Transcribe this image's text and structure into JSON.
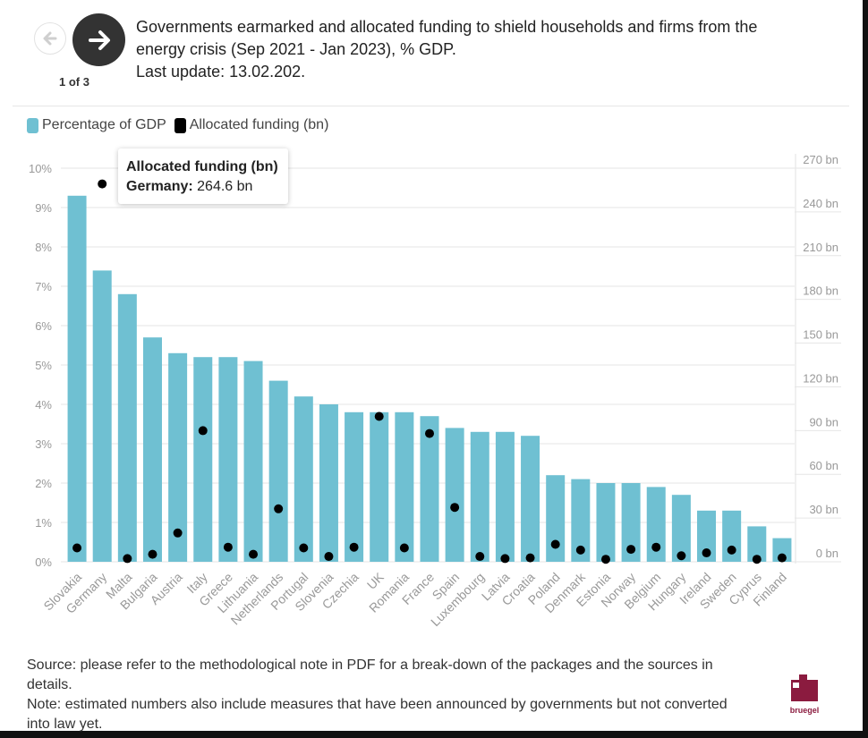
{
  "navigation": {
    "prev_icon": "arrow-left-icon",
    "next_icon": "arrow-right-icon",
    "page_indicator": "1 of 3"
  },
  "header": {
    "title_line1": "Governments earmarked and allocated funding to shield households and firms from the",
    "title_line2": "energy crisis (Sep 2021 - Jan 2023), % GDP.",
    "title_line3": "Last update: 13.02.202."
  },
  "legend": {
    "items": [
      {
        "label": "Percentage of GDP",
        "color": "#6fc0d2"
      },
      {
        "label": "Allocated funding (bn)",
        "color": "#000000"
      }
    ]
  },
  "tooltip": {
    "title": "Allocated funding (bn)",
    "country_label": "Germany:",
    "value_text": "264.6 bn"
  },
  "colors": {
    "bar": "#6fc0d2",
    "dot": "#000000",
    "grid": "#e6e6e6",
    "axis_text": "#999999"
  },
  "chart_data": {
    "type": "bar",
    "categories": [
      "Slovakia",
      "Germany",
      "Malta",
      "Bulgaria",
      "Austria",
      "Italy",
      "Greece",
      "Lithuania",
      "Netherlands",
      "Portugal",
      "Slovenia",
      "Czechia",
      "UK",
      "Romania",
      "France",
      "Spain",
      "Luxembourg",
      "Latvia",
      "Croatia",
      "Poland",
      "Denmark",
      "Estonia",
      "Norway",
      "Belgium",
      "Hungary",
      "Ireland",
      "Sweden",
      "Cyprus",
      "Finland"
    ],
    "series": [
      {
        "name": "Percentage of GDP",
        "type": "bar",
        "axis": "left",
        "values": [
          9.3,
          7.4,
          6.8,
          5.7,
          5.3,
          5.2,
          5.2,
          5.1,
          4.6,
          4.2,
          4.0,
          3.8,
          3.8,
          3.8,
          3.7,
          3.4,
          3.3,
          3.3,
          3.2,
          2.2,
          2.1,
          2.0,
          2.0,
          1.9,
          1.7,
          1.3,
          1.3,
          0.9,
          0.6
        ]
      },
      {
        "name": "Allocated funding (bn)",
        "type": "scatter",
        "axis": "right",
        "values": [
          8.5,
          264.6,
          1,
          4,
          19,
          91,
          9,
          4,
          36,
          8.5,
          2.5,
          9,
          101,
          8.5,
          89,
          37,
          2.5,
          1,
          1.5,
          11,
          7,
          0.5,
          7.5,
          9,
          3,
          5,
          7,
          0.5,
          1.5
        ]
      }
    ],
    "yleft": {
      "min": 0,
      "max": 10,
      "ticks": [
        "0%",
        "1%",
        "2%",
        "3%",
        "4%",
        "5%",
        "6%",
        "7%",
        "8%",
        "9%",
        "10%"
      ]
    },
    "yright": {
      "min": 0,
      "max": 270,
      "ticks": [
        "0 bn",
        "30 bn",
        "60 bn",
        "90 bn",
        "120 bn",
        "150 bn",
        "180 bn",
        "210 bn",
        "240 bn",
        "270 bn"
      ]
    },
    "xlabel": "",
    "ylabel": ""
  },
  "footer": {
    "source_line1": "Source: please refer to the methodological note in PDF for a break-down of the packages and the sources in",
    "source_line2": "details.",
    "note_line1": "Note: estimated numbers also include measures that have been announced by governments but not converted",
    "note_line2": "into law yet."
  },
  "logo": {
    "text": "bruegel",
    "color": "#8b1b3f"
  }
}
